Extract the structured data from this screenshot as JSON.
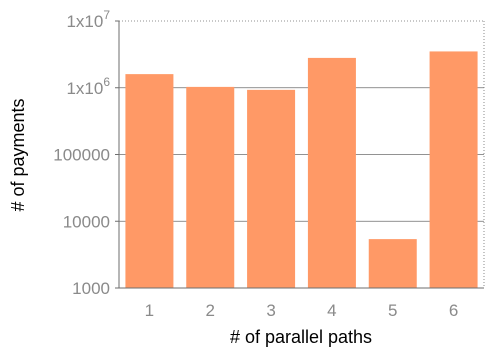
{
  "chart_data": {
    "type": "bar",
    "scale": "log10",
    "categories": [
      "1",
      "2",
      "3",
      "4",
      "5",
      "6"
    ],
    "values": [
      1600000,
      1030000,
      930000,
      2800000,
      5400,
      3500000
    ],
    "xlabel": "# of parallel paths",
    "ylabel": "# of payments",
    "ylim": [
      1000,
      10000000
    ],
    "yticks": [
      {
        "value": 1000,
        "base": "1000",
        "sup": ""
      },
      {
        "value": 10000,
        "base": "10000",
        "sup": ""
      },
      {
        "value": 100000,
        "base": "100000",
        "sup": ""
      },
      {
        "value": 1000000,
        "base": "1x10",
        "sup": "6"
      },
      {
        "value": 10000000,
        "base": "1x10",
        "sup": "7"
      }
    ],
    "grid": true,
    "bar_color": "#ff9966",
    "axis_color": "#6e6e6e"
  }
}
